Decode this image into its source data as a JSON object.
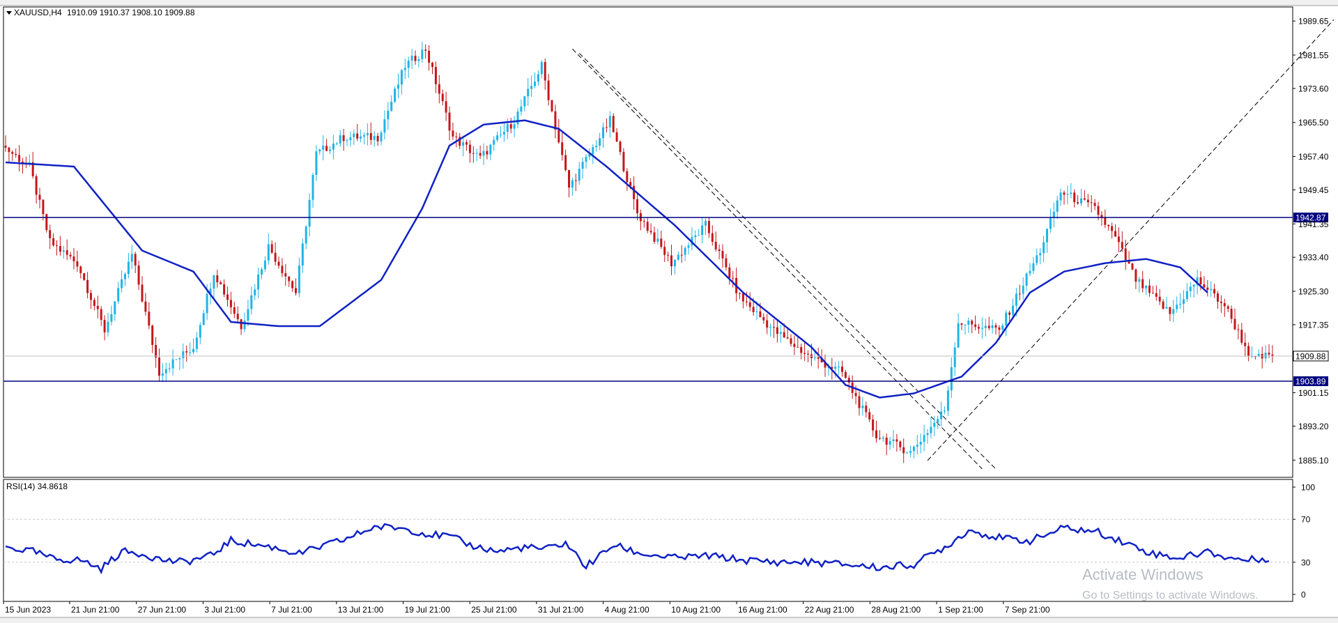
{
  "chart_data": {
    "type": "candlestick",
    "symbol_label": "XAUUSD,H4",
    "ohlc_header": "1910.09 1910.37 1908.10 1909.88",
    "colors": {
      "bull": "#1fb4e6",
      "bear": "#c3171b",
      "ma_line": "#0f21c4",
      "level_line": "#000080",
      "grid": "#c8c8c8"
    },
    "price_axis": {
      "min": 1881.0,
      "max": 1993.0,
      "ticks": [
        "1989.65",
        "1981.55",
        "1973.60",
        "1965.50",
        "1957.40",
        "1949.45",
        "1941.35",
        "1933.40",
        "1925.30",
        "1917.35",
        "1909.88",
        "1901.15",
        "1893.20",
        "1885.10"
      ]
    },
    "time_axis": {
      "labels": [
        "15 Jun 2023",
        "21 Jun 21:00",
        "27 Jun 21:00",
        "3 Jul 21:00",
        "7 Jul 21:00",
        "13 Jul 21:00",
        "19 Jul 21:00",
        "25 Jul 21:00",
        "31 Jul 21:00",
        "4 Aug 21:00",
        "10 Aug 21:00",
        "16 Aug 21:00",
        "22 Aug 21:00",
        "28 Aug 21:00",
        "1 Sep 21:00",
        "7 Sep 21:00"
      ]
    },
    "levels": [
      {
        "value": 1942.87,
        "label": "1942.87",
        "style": "solid"
      },
      {
        "value": 1903.89,
        "label": "1903.89",
        "style": "solid"
      }
    ],
    "current_price": {
      "value": 1909.88,
      "label": "1909.88"
    },
    "price_anchors": [
      [
        0,
        1960
      ],
      [
        8,
        1955
      ],
      [
        14,
        1937
      ],
      [
        22,
        1932
      ],
      [
        30,
        1916
      ],
      [
        38,
        1934
      ],
      [
        46,
        1906
      ],
      [
        56,
        1912
      ],
      [
        62,
        1930
      ],
      [
        70,
        1917
      ],
      [
        78,
        1936
      ],
      [
        86,
        1925
      ],
      [
        92,
        1958
      ],
      [
        100,
        1962
      ],
      [
        110,
        1962
      ],
      [
        118,
        1979
      ],
      [
        124,
        1983
      ],
      [
        132,
        1962
      ],
      [
        140,
        1957
      ],
      [
        150,
        1966
      ],
      [
        158,
        1979
      ],
      [
        166,
        1950
      ],
      [
        172,
        1958
      ],
      [
        178,
        1966
      ],
      [
        186,
        1944
      ],
      [
        196,
        1932
      ],
      [
        206,
        1941
      ],
      [
        216,
        1924
      ],
      [
        226,
        1916
      ],
      [
        236,
        1910
      ],
      [
        246,
        1906
      ],
      [
        256,
        1891
      ],
      [
        266,
        1887
      ],
      [
        276,
        1897
      ],
      [
        280,
        1918
      ],
      [
        292,
        1916
      ],
      [
        304,
        1935
      ],
      [
        310,
        1949
      ],
      [
        320,
        1945
      ],
      [
        326,
        1938
      ],
      [
        332,
        1928
      ],
      [
        342,
        1920
      ],
      [
        350,
        1928
      ],
      [
        358,
        1922
      ],
      [
        366,
        1909
      ],
      [
        371,
        1910
      ]
    ],
    "moving_average": [
      [
        0,
        1956
      ],
      [
        20,
        1955
      ],
      [
        40,
        1935
      ],
      [
        55,
        1930
      ],
      [
        66,
        1918
      ],
      [
        80,
        1917
      ],
      [
        92,
        1917
      ],
      [
        110,
        1928
      ],
      [
        122,
        1945
      ],
      [
        130,
        1960
      ],
      [
        140,
        1965
      ],
      [
        152,
        1966
      ],
      [
        162,
        1964
      ],
      [
        176,
        1955
      ],
      [
        196,
        1941
      ],
      [
        216,
        1925
      ],
      [
        236,
        1912
      ],
      [
        246,
        1903
      ],
      [
        256,
        1900
      ],
      [
        266,
        1901
      ],
      [
        280,
        1905
      ],
      [
        290,
        1913
      ],
      [
        300,
        1925
      ],
      [
        310,
        1930
      ],
      [
        322,
        1932
      ],
      [
        334,
        1933
      ],
      [
        344,
        1931
      ],
      [
        352,
        1925
      ]
    ],
    "trendlines": [
      {
        "style": "dashed",
        "points": [
          [
            166,
            1983
          ],
          [
            286,
            1883
          ]
        ]
      },
      {
        "style": "dashed",
        "points": [
          [
            168,
            1982
          ],
          [
            290,
            1883
          ]
        ]
      },
      {
        "style": "dashed",
        "points": [
          [
            270,
            1885
          ],
          [
            389,
            1990
          ]
        ]
      }
    ],
    "rsi": {
      "label": "RSI(14) 34.8618",
      "levels": [
        "100",
        "70",
        "30",
        "0"
      ],
      "range": [
        0,
        100
      ],
      "guide_levels": [
        70,
        30
      ],
      "anchors": [
        [
          0,
          44
        ],
        [
          8,
          40
        ],
        [
          14,
          33
        ],
        [
          22,
          32
        ],
        [
          28,
          24
        ],
        [
          34,
          40
        ],
        [
          40,
          38
        ],
        [
          46,
          32
        ],
        [
          52,
          30
        ],
        [
          60,
          36
        ],
        [
          66,
          50
        ],
        [
          70,
          48
        ],
        [
          78,
          44
        ],
        [
          86,
          38
        ],
        [
          92,
          44
        ],
        [
          100,
          52
        ],
        [
          108,
          63
        ],
        [
          116,
          62
        ],
        [
          124,
          56
        ],
        [
          130,
          54
        ],
        [
          136,
          46
        ],
        [
          144,
          40
        ],
        [
          152,
          44
        ],
        [
          158,
          42
        ],
        [
          164,
          48
        ],
        [
          170,
          26
        ],
        [
          178,
          46
        ],
        [
          186,
          38
        ],
        [
          196,
          34
        ],
        [
          206,
          36
        ],
        [
          216,
          32
        ],
        [
          226,
          30
        ],
        [
          236,
          30
        ],
        [
          246,
          28
        ],
        [
          256,
          25
        ],
        [
          266,
          28
        ],
        [
          276,
          46
        ],
        [
          282,
          60
        ],
        [
          292,
          52
        ],
        [
          300,
          50
        ],
        [
          310,
          62
        ],
        [
          320,
          58
        ],
        [
          328,
          48
        ],
        [
          336,
          38
        ],
        [
          344,
          34
        ],
        [
          352,
          40
        ],
        [
          358,
          34
        ],
        [
          364,
          32
        ],
        [
          370,
          34
        ]
      ]
    }
  },
  "watermark": {
    "title": "Activate Windows",
    "subtitle": "Go to Settings to activate Windows."
  }
}
